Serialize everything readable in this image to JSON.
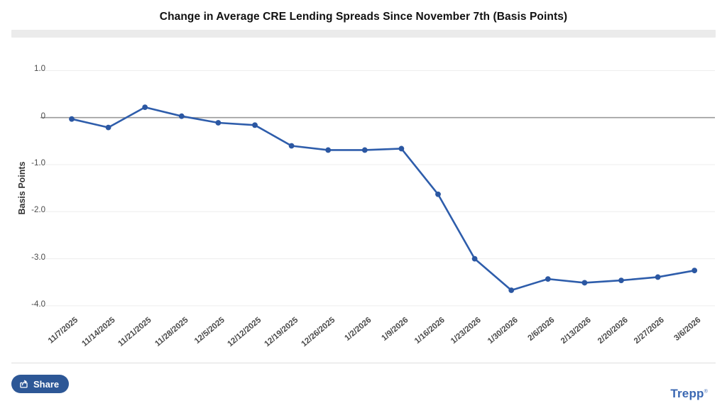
{
  "title": "Change in Average CRE Lending Spreads Since November 7th (Basis Points)",
  "chart_data": {
    "type": "line",
    "x": [
      "11/7/2025",
      "11/14/2025",
      "11/21/2025",
      "11/28/2025",
      "12/5/2025",
      "12/12/2025",
      "12/19/2025",
      "12/26/2025",
      "1/2/2026",
      "1/9/2026",
      "1/16/2026",
      "1/23/2026",
      "1/30/2026",
      "2/6/2026",
      "2/13/2026",
      "2/20/2026",
      "2/27/2026",
      "3/6/2026"
    ],
    "series": [
      {
        "name": "Change in Average CRE Lending Spreads",
        "values": [
          -0.03,
          -0.21,
          0.22,
          0.03,
          -0.11,
          -0.16,
          -0.6,
          -0.69,
          -0.69,
          -0.66,
          -1.63,
          -3.0,
          -3.67,
          -3.43,
          -3.51,
          -3.46,
          -3.39,
          -3.25
        ]
      }
    ],
    "title": "Change in Average CRE Lending Spreads Since November 7th (Basis Points)",
    "xlabel": "",
    "ylabel": "Basis Points",
    "ylim": [
      -4.0,
      1.0
    ],
    "yticks": [
      1.0,
      0,
      -1.0,
      -2.0,
      -3.0,
      -4.0
    ],
    "ytick_labels": [
      "1.0",
      "0",
      "-1.0",
      "-2.0",
      "-3.0",
      "-4.0"
    ],
    "grid": true,
    "legend_position": "none",
    "colors": {
      "line": "#2e5dab",
      "marker": "#2b57a2",
      "zero_line": "#9a9a9a",
      "gridline": "#ededed"
    }
  },
  "footer": {
    "share_label": "Share",
    "share_icon": "share-export-icon",
    "share_button_color": "#2d5796",
    "brand": "Trepp",
    "brand_mark": "®",
    "brand_color": "#3a67b2"
  }
}
